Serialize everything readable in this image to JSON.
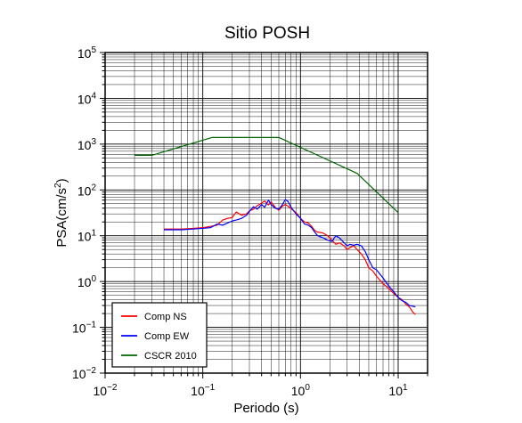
{
  "chart_data": {
    "type": "line",
    "title": "Sitio POSH",
    "xlabel": "Periodo (s)",
    "ylabel": "PSA(cm/s²)",
    "ylabel_parts": {
      "base": "PSA(cm/s",
      "exp": "2",
      "tail": ")"
    },
    "x_scale": "log",
    "y_scale": "log",
    "xlim": [
      0.01,
      20
    ],
    "ylim": [
      0.01,
      100000
    ],
    "grid": true,
    "legend_position": "bottom-left",
    "x_ticks": [
      {
        "value": 0.01,
        "base": "10",
        "exp": "−2"
      },
      {
        "value": 0.1,
        "base": "10",
        "exp": "−1"
      },
      {
        "value": 1,
        "base": "10",
        "exp": "0"
      },
      {
        "value": 10,
        "base": "10",
        "exp": "1"
      }
    ],
    "y_ticks": [
      {
        "value": 0.01,
        "base": "10",
        "exp": "−2"
      },
      {
        "value": 0.1,
        "base": "10",
        "exp": "−1"
      },
      {
        "value": 1,
        "base": "10",
        "exp": "0"
      },
      {
        "value": 10,
        "base": "10",
        "exp": "1"
      },
      {
        "value": 100,
        "base": "10",
        "exp": "2"
      },
      {
        "value": 1000,
        "base": "10",
        "exp": "3"
      },
      {
        "value": 10000,
        "base": "10",
        "exp": "4"
      },
      {
        "value": 100000,
        "base": "10",
        "exp": "5"
      }
    ],
    "series": [
      {
        "name": "Comp NS",
        "color": "#ff0000",
        "points": [
          [
            0.04,
            14
          ],
          [
            0.06,
            14
          ],
          [
            0.08,
            14.5
          ],
          [
            0.1,
            15
          ],
          [
            0.12,
            16
          ],
          [
            0.14,
            17
          ],
          [
            0.16,
            22
          ],
          [
            0.18,
            24
          ],
          [
            0.2,
            25
          ],
          [
            0.22,
            33
          ],
          [
            0.25,
            28
          ],
          [
            0.28,
            30
          ],
          [
            0.3,
            35
          ],
          [
            0.33,
            38
          ],
          [
            0.36,
            45
          ],
          [
            0.4,
            52
          ],
          [
            0.43,
            57
          ],
          [
            0.47,
            47
          ],
          [
            0.5,
            55
          ],
          [
            0.55,
            42
          ],
          [
            0.6,
            36
          ],
          [
            0.65,
            44
          ],
          [
            0.7,
            48
          ],
          [
            0.75,
            44
          ],
          [
            0.8,
            39
          ],
          [
            0.9,
            32
          ],
          [
            1.0,
            24
          ],
          [
            1.1,
            20
          ],
          [
            1.2,
            19
          ],
          [
            1.3,
            16
          ],
          [
            1.4,
            13
          ],
          [
            1.5,
            12
          ],
          [
            1.7,
            11.5
          ],
          [
            1.9,
            10
          ],
          [
            2.1,
            8
          ],
          [
            2.3,
            6.5
          ],
          [
            2.5,
            7
          ],
          [
            2.8,
            6
          ],
          [
            3.0,
            5
          ],
          [
            3.2,
            5.5
          ],
          [
            3.5,
            6
          ],
          [
            3.8,
            5
          ],
          [
            4.2,
            4
          ],
          [
            4.6,
            3
          ],
          [
            5.0,
            2
          ],
          [
            5.5,
            1.7
          ],
          [
            6.0,
            1.3
          ],
          [
            7.0,
            0.9
          ],
          [
            8.0,
            0.7
          ],
          [
            9.0,
            0.55
          ],
          [
            10,
            0.45
          ],
          [
            11,
            0.4
          ],
          [
            12,
            0.32
          ],
          [
            13,
            0.28
          ],
          [
            14,
            0.22
          ],
          [
            15,
            0.19
          ]
        ]
      },
      {
        "name": "Comp EW",
        "color": "#0000ff",
        "points": [
          [
            0.04,
            13.5
          ],
          [
            0.06,
            13.5
          ],
          [
            0.08,
            14
          ],
          [
            0.1,
            14.5
          ],
          [
            0.12,
            15
          ],
          [
            0.14,
            18
          ],
          [
            0.16,
            17
          ],
          [
            0.18,
            19
          ],
          [
            0.2,
            21
          ],
          [
            0.22,
            22
          ],
          [
            0.25,
            24
          ],
          [
            0.28,
            28
          ],
          [
            0.3,
            34
          ],
          [
            0.33,
            43
          ],
          [
            0.36,
            38
          ],
          [
            0.4,
            48
          ],
          [
            0.43,
            42
          ],
          [
            0.47,
            60
          ],
          [
            0.5,
            48
          ],
          [
            0.55,
            40
          ],
          [
            0.6,
            38
          ],
          [
            0.65,
            47
          ],
          [
            0.7,
            62
          ],
          [
            0.75,
            55
          ],
          [
            0.8,
            42
          ],
          [
            0.9,
            30
          ],
          [
            1.0,
            24
          ],
          [
            1.1,
            18
          ],
          [
            1.2,
            17
          ],
          [
            1.3,
            15
          ],
          [
            1.4,
            12
          ],
          [
            1.5,
            10
          ],
          [
            1.7,
            9
          ],
          [
            1.9,
            8
          ],
          [
            2.1,
            7.5
          ],
          [
            2.3,
            10
          ],
          [
            2.5,
            9
          ],
          [
            2.8,
            7
          ],
          [
            3.0,
            6
          ],
          [
            3.2,
            6.5
          ],
          [
            3.5,
            6.2
          ],
          [
            3.8,
            6.5
          ],
          [
            4.2,
            6
          ],
          [
            4.6,
            4.5
          ],
          [
            5.0,
            3
          ],
          [
            5.5,
            2
          ],
          [
            6.0,
            1.8
          ],
          [
            7.0,
            1.2
          ],
          [
            8.0,
            0.8
          ],
          [
            9.0,
            0.6
          ],
          [
            10,
            0.45
          ],
          [
            11,
            0.38
          ],
          [
            12,
            0.35
          ],
          [
            13,
            0.3
          ],
          [
            15,
            0.28
          ]
        ]
      },
      {
        "name": "CSCR 2010",
        "color": "#006400",
        "points": [
          [
            0.02,
            570
          ],
          [
            0.03,
            570
          ],
          [
            0.125,
            1400
          ],
          [
            0.6,
            1400
          ],
          [
            3.8,
            230
          ],
          [
            10,
            32
          ]
        ]
      }
    ]
  }
}
